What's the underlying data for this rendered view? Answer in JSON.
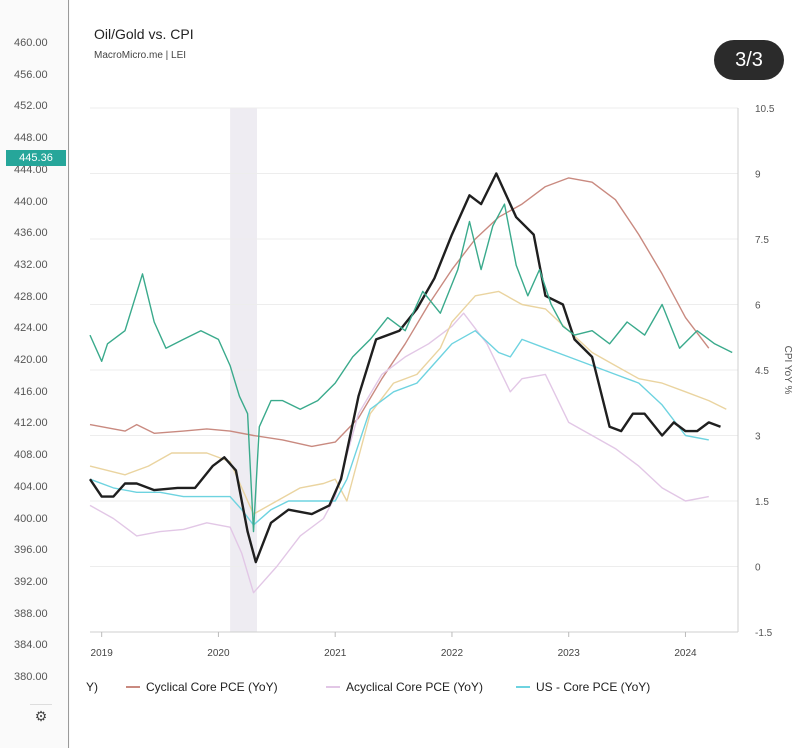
{
  "header": {
    "title": "Oil/Gold vs. CPI",
    "subtitle": "MacroMicro.me | LEI",
    "page_indicator": "3/3"
  },
  "left_axis": {
    "ticks": [
      "460.00",
      "456.00",
      "452.00",
      "448.00",
      "444.00",
      "440.00",
      "436.00",
      "432.00",
      "428.00",
      "424.00",
      "420.00",
      "416.00",
      "412.00",
      "408.00",
      "404.00",
      "400.00",
      "396.00",
      "392.00",
      "388.00",
      "384.00",
      "380.00"
    ],
    "current_price": "445.36",
    "current_price_color": "#26a69a",
    "settings_icon": "gear-icon"
  },
  "chart_data": {
    "type": "line",
    "title": "Oil/Gold vs. CPI",
    "right_axis": {
      "label": "CPI YoY %",
      "ticks": [
        "10.5",
        "9",
        "7.5",
        "6",
        "4.5",
        "3",
        "1.5",
        "0",
        "-1.5"
      ],
      "ylim": [
        -1.5,
        10.5
      ]
    },
    "x_axis": {
      "ticks": [
        "2019",
        "2020",
        "2021",
        "2022",
        "2023",
        "2024"
      ],
      "range": [
        2018.9,
        2024.45
      ]
    },
    "shaded_region": [
      2020.1,
      2020.33
    ],
    "series": [
      {
        "name": "Cyclical Core PCE (YoY)",
        "color": "#c98a80",
        "points": [
          [
            2018.9,
            3.25
          ],
          [
            2019.2,
            3.1
          ],
          [
            2019.3,
            3.25
          ],
          [
            2019.45,
            3.05
          ],
          [
            2019.7,
            3.1
          ],
          [
            2019.9,
            3.15
          ],
          [
            2020.1,
            3.1
          ],
          [
            2020.3,
            3.0
          ],
          [
            2020.55,
            2.9
          ],
          [
            2020.8,
            2.75
          ],
          [
            2021.0,
            2.85
          ],
          [
            2021.2,
            3.4
          ],
          [
            2021.4,
            4.3
          ],
          [
            2021.6,
            5.1
          ],
          [
            2021.8,
            6.0
          ],
          [
            2022.0,
            6.8
          ],
          [
            2022.2,
            7.5
          ],
          [
            2022.4,
            8.0
          ],
          [
            2022.6,
            8.3
          ],
          [
            2022.8,
            8.7
          ],
          [
            2023.0,
            8.9
          ],
          [
            2023.2,
            8.8
          ],
          [
            2023.4,
            8.4
          ],
          [
            2023.6,
            7.6
          ],
          [
            2023.8,
            6.7
          ],
          [
            2024.0,
            5.7
          ],
          [
            2024.2,
            5.0
          ]
        ]
      },
      {
        "name": "Acyclical Core PCE (YoY)",
        "color": "#e2c7e6",
        "points": [
          [
            2018.9,
            1.4
          ],
          [
            2019.1,
            1.1
          ],
          [
            2019.3,
            0.7
          ],
          [
            2019.5,
            0.8
          ],
          [
            2019.7,
            0.85
          ],
          [
            2019.9,
            1.0
          ],
          [
            2020.1,
            0.9
          ],
          [
            2020.2,
            0.3
          ],
          [
            2020.3,
            -0.6
          ],
          [
            2020.5,
            0.0
          ],
          [
            2020.7,
            0.7
          ],
          [
            2020.9,
            1.1
          ],
          [
            2021.0,
            1.6
          ],
          [
            2021.2,
            3.5
          ],
          [
            2021.4,
            4.4
          ],
          [
            2021.6,
            4.8
          ],
          [
            2021.8,
            5.1
          ],
          [
            2022.0,
            5.5
          ],
          [
            2022.1,
            5.8
          ],
          [
            2022.3,
            5.1
          ],
          [
            2022.5,
            4.0
          ],
          [
            2022.6,
            4.3
          ],
          [
            2022.8,
            4.4
          ],
          [
            2023.0,
            3.3
          ],
          [
            2023.2,
            3.0
          ],
          [
            2023.4,
            2.7
          ],
          [
            2023.6,
            2.3
          ],
          [
            2023.8,
            1.8
          ],
          [
            2024.0,
            1.5
          ],
          [
            2024.2,
            1.6
          ]
        ]
      },
      {
        "name": "",
        "color": "#ead4a0",
        "points": [
          [
            2018.9,
            2.3
          ],
          [
            2019.2,
            2.1
          ],
          [
            2019.4,
            2.3
          ],
          [
            2019.6,
            2.6
          ],
          [
            2019.9,
            2.6
          ],
          [
            2020.1,
            2.4
          ],
          [
            2020.3,
            1.2
          ],
          [
            2020.5,
            1.5
          ],
          [
            2020.7,
            1.8
          ],
          [
            2020.9,
            1.9
          ],
          [
            2021.0,
            2.0
          ],
          [
            2021.1,
            1.5
          ],
          [
            2021.3,
            3.5
          ],
          [
            2021.5,
            4.2
          ],
          [
            2021.7,
            4.4
          ],
          [
            2021.9,
            5.0
          ],
          [
            2022.0,
            5.6
          ],
          [
            2022.2,
            6.2
          ],
          [
            2022.4,
            6.3
          ],
          [
            2022.6,
            6.0
          ],
          [
            2022.8,
            5.9
          ],
          [
            2023.0,
            5.4
          ],
          [
            2023.2,
            4.9
          ],
          [
            2023.4,
            4.6
          ],
          [
            2023.6,
            4.3
          ],
          [
            2023.8,
            4.2
          ],
          [
            2024.0,
            4.0
          ],
          [
            2024.2,
            3.8
          ],
          [
            2024.35,
            3.6
          ]
        ]
      },
      {
        "name": "US - Core PCE (YoY)",
        "color": "#6ed3e0",
        "points": [
          [
            2018.9,
            2.0
          ],
          [
            2019.1,
            1.8
          ],
          [
            2019.3,
            1.7
          ],
          [
            2019.5,
            1.7
          ],
          [
            2019.7,
            1.6
          ],
          [
            2019.9,
            1.6
          ],
          [
            2020.1,
            1.6
          ],
          [
            2020.2,
            1.3
          ],
          [
            2020.3,
            0.95
          ],
          [
            2020.45,
            1.3
          ],
          [
            2020.6,
            1.5
          ],
          [
            2020.8,
            1.5
          ],
          [
            2021.0,
            1.5
          ],
          [
            2021.1,
            2.0
          ],
          [
            2021.3,
            3.6
          ],
          [
            2021.5,
            4.0
          ],
          [
            2021.7,
            4.2
          ],
          [
            2021.9,
            4.8
          ],
          [
            2022.0,
            5.1
          ],
          [
            2022.2,
            5.4
          ],
          [
            2022.4,
            4.9
          ],
          [
            2022.5,
            4.8
          ],
          [
            2022.6,
            5.2
          ],
          [
            2022.8,
            5.0
          ],
          [
            2023.0,
            4.8
          ],
          [
            2023.2,
            4.6
          ],
          [
            2023.4,
            4.4
          ],
          [
            2023.6,
            4.2
          ],
          [
            2023.8,
            3.7
          ],
          [
            2024.0,
            3.0
          ],
          [
            2024.2,
            2.9
          ]
        ]
      },
      {
        "name": "",
        "color": "#1f1f1f",
        "points": [
          [
            2018.9,
            2.0
          ],
          [
            2019.0,
            1.6
          ],
          [
            2019.1,
            1.6
          ],
          [
            2019.2,
            1.9
          ],
          [
            2019.3,
            1.9
          ],
          [
            2019.45,
            1.75
          ],
          [
            2019.65,
            1.8
          ],
          [
            2019.8,
            1.8
          ],
          [
            2019.95,
            2.3
          ],
          [
            2020.05,
            2.5
          ],
          [
            2020.15,
            2.2
          ],
          [
            2020.25,
            0.8
          ],
          [
            2020.32,
            0.1
          ],
          [
            2020.45,
            1.0
          ],
          [
            2020.6,
            1.3
          ],
          [
            2020.8,
            1.2
          ],
          [
            2020.95,
            1.4
          ],
          [
            2021.05,
            2.0
          ],
          [
            2021.2,
            3.9
          ],
          [
            2021.35,
            5.2
          ],
          [
            2021.55,
            5.4
          ],
          [
            2021.7,
            5.9
          ],
          [
            2021.85,
            6.6
          ],
          [
            2022.0,
            7.6
          ],
          [
            2022.15,
            8.5
          ],
          [
            2022.25,
            8.3
          ],
          [
            2022.38,
            9.0
          ],
          [
            2022.55,
            8.0
          ],
          [
            2022.7,
            7.6
          ],
          [
            2022.8,
            6.2
          ],
          [
            2022.95,
            6.0
          ],
          [
            2023.05,
            5.2
          ],
          [
            2023.2,
            4.8
          ],
          [
            2023.35,
            3.2
          ],
          [
            2023.45,
            3.1
          ],
          [
            2023.55,
            3.5
          ],
          [
            2023.65,
            3.5
          ],
          [
            2023.8,
            3.0
          ],
          [
            2023.9,
            3.3
          ],
          [
            2024.0,
            3.1
          ],
          [
            2024.1,
            3.1
          ],
          [
            2024.2,
            3.3
          ],
          [
            2024.3,
            3.2
          ]
        ]
      },
      {
        "name": "",
        "color": "#3aaa8c",
        "points": [
          [
            2018.9,
            5.3
          ],
          [
            2019.0,
            4.7
          ],
          [
            2019.05,
            5.1
          ],
          [
            2019.2,
            5.4
          ],
          [
            2019.35,
            6.7
          ],
          [
            2019.45,
            5.6
          ],
          [
            2019.55,
            5.0
          ],
          [
            2019.7,
            5.2
          ],
          [
            2019.85,
            5.4
          ],
          [
            2020.0,
            5.2
          ],
          [
            2020.1,
            4.6
          ],
          [
            2020.18,
            3.9
          ],
          [
            2020.25,
            3.5
          ],
          [
            2020.3,
            0.8
          ],
          [
            2020.35,
            3.2
          ],
          [
            2020.45,
            3.8
          ],
          [
            2020.55,
            3.8
          ],
          [
            2020.7,
            3.6
          ],
          [
            2020.85,
            3.8
          ],
          [
            2021.0,
            4.2
          ],
          [
            2021.15,
            4.8
          ],
          [
            2021.3,
            5.2
          ],
          [
            2021.45,
            5.7
          ],
          [
            2021.6,
            5.4
          ],
          [
            2021.75,
            6.3
          ],
          [
            2021.9,
            5.8
          ],
          [
            2022.05,
            6.8
          ],
          [
            2022.15,
            7.9
          ],
          [
            2022.25,
            6.8
          ],
          [
            2022.35,
            7.8
          ],
          [
            2022.45,
            8.3
          ],
          [
            2022.55,
            6.9
          ],
          [
            2022.65,
            6.2
          ],
          [
            2022.75,
            6.8
          ],
          [
            2022.85,
            6.0
          ],
          [
            2022.95,
            5.5
          ],
          [
            2023.05,
            5.3
          ],
          [
            2023.2,
            5.4
          ],
          [
            2023.35,
            5.1
          ],
          [
            2023.5,
            5.6
          ],
          [
            2023.65,
            5.3
          ],
          [
            2023.8,
            6.0
          ],
          [
            2023.95,
            5.0
          ],
          [
            2024.1,
            5.4
          ],
          [
            2024.25,
            5.1
          ],
          [
            2024.4,
            4.9
          ]
        ]
      }
    ],
    "legend": [
      {
        "label": "Y)",
        "color": ""
      },
      {
        "label": "Cyclical Core PCE (YoY)",
        "color": "#c98a80"
      },
      {
        "label": "Acyclical Core PCE (YoY)",
        "color": "#e2c7e6"
      },
      {
        "label": "US - Core PCE (YoY)",
        "color": "#6ed3e0"
      }
    ]
  }
}
